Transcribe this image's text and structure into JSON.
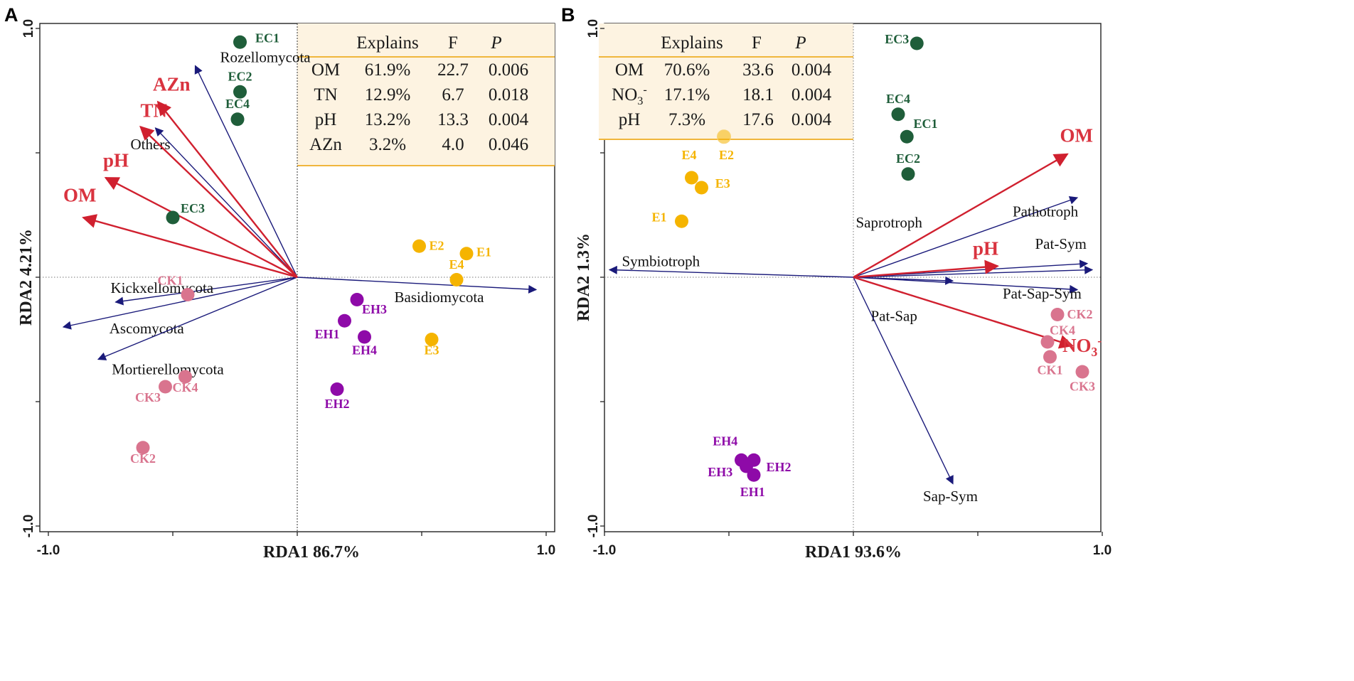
{
  "colors": {
    "env_arrow": "#d0202f",
    "taxon_arrow": "#1a1a7a",
    "EC": "#1f5e3a",
    "E": "#f5b400",
    "EH": "#8e0aa8",
    "CK": "#d9748e",
    "table_bg": "#fdf3e1",
    "table_line": "#f0b63c",
    "env_label": "#d9333f"
  },
  "chart_data": [
    {
      "panel": "A",
      "type": "scatter",
      "xlabel": "RDA1 86.7%",
      "ylabel": "RDA2 4.21%",
      "xlim": [
        -1.0,
        1.0
      ],
      "ylim": [
        -1.0,
        1.0
      ],
      "xticks": [
        {
          "value": -1.0,
          "label": "-1.0"
        },
        {
          "value": 1.0,
          "label": "1.0"
        }
      ],
      "yticks": [
        {
          "value": 1.0,
          "label": "1.0"
        },
        {
          "value": -1.0,
          "label": "-1.0"
        }
      ],
      "table": {
        "headers": [
          "Explains",
          "F",
          "P"
        ],
        "rows": [
          {
            "var": "OM",
            "explains": "61.9%",
            "F": "22.7",
            "P": "0.006"
          },
          {
            "var": "TN",
            "explains": "12.9%",
            "F": "6.7",
            "P": "0.018"
          },
          {
            "var": "pH",
            "explains": "13.2%",
            "F": "13.3",
            "P": "0.004"
          },
          {
            "var": "AZn",
            "explains": "3.2%",
            "F": "4.0",
            "P": "0.046"
          }
        ]
      },
      "env_arrows": [
        {
          "name": "OM",
          "x": -0.86,
          "y": 0.24,
          "lx": -0.94,
          "ly": 0.305
        },
        {
          "name": "pH",
          "x": -0.77,
          "y": 0.4,
          "lx": -0.78,
          "ly": 0.445
        },
        {
          "name": "TN",
          "x": -0.63,
          "y": 0.605,
          "lx": -0.63,
          "ly": 0.645
        },
        {
          "name": "AZn",
          "x": -0.56,
          "y": 0.705,
          "lx": -0.58,
          "ly": 0.75
        }
      ],
      "taxa_arrows": [
        {
          "name": "Rozellomycota",
          "x": -0.41,
          "y": 0.85,
          "lx": -0.31,
          "ly": 0.865
        },
        {
          "name": "Others",
          "x": -0.57,
          "y": 0.6,
          "lx": -0.67,
          "ly": 0.515
        },
        {
          "name": "Kickxellomycota",
          "x": -0.73,
          "y": -0.1,
          "lx": -0.75,
          "ly": -0.063
        },
        {
          "name": "Ascomycota",
          "x": -0.94,
          "y": -0.2,
          "lx": -0.755,
          "ly": -0.225
        },
        {
          "name": "Mortierellomycota",
          "x": -0.8,
          "y": -0.33,
          "lx": -0.745,
          "ly": -0.39
        },
        {
          "name": "Basidiomycota",
          "x": 0.96,
          "y": -0.05,
          "lx": 0.39,
          "ly": -0.1
        }
      ],
      "points": [
        {
          "label": "EC1",
          "group": "EC",
          "x": -0.23,
          "y": 0.945,
          "lx": -0.12,
          "ly": 0.945
        },
        {
          "label": "EC2",
          "group": "EC",
          "x": -0.23,
          "y": 0.745,
          "lx": -0.23,
          "ly": 0.79
        },
        {
          "label": "EC4",
          "group": "EC",
          "x": -0.24,
          "y": 0.635,
          "lx": -0.24,
          "ly": 0.68
        },
        {
          "label": "EC3",
          "group": "EC",
          "x": -0.5,
          "y": 0.24,
          "lx": -0.42,
          "ly": 0.26
        },
        {
          "label": "E2",
          "group": "E",
          "x": 0.49,
          "y": 0.125,
          "lx": 0.56,
          "ly": 0.11
        },
        {
          "label": "E1",
          "group": "E",
          "x": 0.68,
          "y": 0.095,
          "lx": 0.75,
          "ly": 0.085
        },
        {
          "label": "E4",
          "group": "E",
          "x": 0.64,
          "y": -0.01,
          "lx": 0.64,
          "ly": 0.035
        },
        {
          "label": "E3",
          "group": "E",
          "x": 0.54,
          "y": -0.25,
          "lx": 0.54,
          "ly": -0.31
        },
        {
          "label": "EH3",
          "group": "EH",
          "x": 0.24,
          "y": -0.09,
          "lx": 0.31,
          "ly": -0.145
        },
        {
          "label": "EH1",
          "group": "EH",
          "x": 0.19,
          "y": -0.175,
          "lx": 0.12,
          "ly": -0.245
        },
        {
          "label": "EH4",
          "group": "EH",
          "x": 0.27,
          "y": -0.24,
          "lx": 0.27,
          "ly": -0.31
        },
        {
          "label": "EH2",
          "group": "EH",
          "x": 0.16,
          "y": -0.45,
          "lx": 0.16,
          "ly": -0.525
        },
        {
          "label": "CK1",
          "group": "CK",
          "x": -0.44,
          "y": -0.07,
          "lx": -0.51,
          "ly": -0.03
        },
        {
          "label": "CK4",
          "group": "CK",
          "x": -0.45,
          "y": -0.4,
          "lx": -0.45,
          "ly": -0.46
        },
        {
          "label": "CK3",
          "group": "CK",
          "x": -0.53,
          "y": -0.44,
          "lx": -0.6,
          "ly": -0.5
        },
        {
          "label": "CK2",
          "group": "CK",
          "x": -0.62,
          "y": -0.685,
          "lx": -0.62,
          "ly": -0.745
        }
      ]
    },
    {
      "panel": "B",
      "type": "scatter",
      "xlabel": "RDA1  93.6%",
      "ylabel": "RDA2 1.3%",
      "xlim": [
        -1.0,
        1.0
      ],
      "ylim": [
        -1.0,
        1.0
      ],
      "xticks": [
        {
          "value": -1.0,
          "label": "-1.0"
        },
        {
          "value": 1.0,
          "label": "1.0"
        }
      ],
      "yticks": [
        {
          "value": 1.0,
          "label": "1.0"
        },
        {
          "value": -1.0,
          "label": "-1.0"
        }
      ],
      "table": {
        "headers": [
          "Explains",
          "F",
          "P"
        ],
        "rows": [
          {
            "var": "OM",
            "var_sub": "",
            "var_sup": "",
            "explains": "70.6%",
            "F": "33.6",
            "P": "0.004"
          },
          {
            "var": "NO",
            "var_sub": "3",
            "var_sup": "-",
            "explains": "17.1%",
            "F": "18.1",
            "P": "0.004"
          },
          {
            "var": "pH",
            "var_sub": "",
            "var_sup": "",
            "explains": "7.3%",
            "F": "17.6",
            "P": "0.004"
          }
        ]
      },
      "env_arrows": [
        {
          "name": "OM",
          "sub": "",
          "sup": "",
          "x": 0.86,
          "y": 0.495,
          "lx": 0.83,
          "ly": 0.545
        },
        {
          "name": "pH",
          "sub": "",
          "sup": "",
          "x": 0.58,
          "y": 0.045,
          "lx": 0.48,
          "ly": 0.09
        },
        {
          "name": "NO",
          "sub": "3",
          "sup": "-",
          "x": 0.88,
          "y": -0.275,
          "lx": 0.84,
          "ly": -0.3
        }
      ],
      "taxa_arrows": [
        {
          "name": "Symbiotroph",
          "x": -0.98,
          "y": 0.03,
          "lx": -0.93,
          "ly": 0.045
        },
        {
          "name": "Saprotroph",
          "x": 0.96,
          "y": 0.03,
          "lx": 0.01,
          "ly": 0.2
        },
        {
          "name": "Pathotroph",
          "x": 0.9,
          "y": 0.32,
          "lx": 0.64,
          "ly": 0.245
        },
        {
          "name": "Pat-Sym",
          "x": 0.94,
          "y": 0.055,
          "lx": 0.73,
          "ly": 0.115
        },
        {
          "name": "Pat-Sap-Sym",
          "x": 0.9,
          "y": -0.05,
          "lx": 0.6,
          "ly": -0.085
        },
        {
          "name": "Pat-Sap",
          "x": 0.4,
          "y": -0.015,
          "lx": 0.07,
          "ly": -0.175
        },
        {
          "name": "Sap-Sym",
          "x": 0.4,
          "y": -0.83,
          "lx": 0.28,
          "ly": -0.9
        }
      ],
      "points": [
        {
          "label": "EC3",
          "group": "EC",
          "x": 0.255,
          "y": 0.94,
          "lx": 0.175,
          "ly": 0.94
        },
        {
          "label": "EC4",
          "group": "EC",
          "x": 0.18,
          "y": 0.655,
          "lx": 0.18,
          "ly": 0.7
        },
        {
          "label": "EC1",
          "group": "EC",
          "x": 0.215,
          "y": 0.565,
          "lx": 0.29,
          "ly": 0.6
        },
        {
          "label": "EC2",
          "group": "EC",
          "x": 0.22,
          "y": 0.415,
          "lx": 0.22,
          "ly": 0.46
        },
        {
          "label": "E2",
          "group": "E",
          "x": -0.52,
          "y": 0.565,
          "lx": -0.51,
          "ly": 0.475
        },
        {
          "label": "E4",
          "group": "E",
          "x": -0.65,
          "y": 0.4,
          "lx": -0.66,
          "ly": 0.475
        },
        {
          "label": "E3",
          "group": "E",
          "x": -0.61,
          "y": 0.36,
          "lx": -0.525,
          "ly": 0.36
        },
        {
          "label": "E1",
          "group": "E",
          "x": -0.69,
          "y": 0.225,
          "lx": -0.78,
          "ly": 0.225
        },
        {
          "label": "EH4",
          "group": "EH",
          "x": -0.45,
          "y": -0.735,
          "lx": -0.515,
          "ly": -0.675
        },
        {
          "label": "EH2",
          "group": "EH",
          "x": -0.4,
          "y": -0.735,
          "lx": -0.3,
          "ly": -0.78
        },
        {
          "label": "EH3",
          "group": "EH",
          "x": -0.43,
          "y": -0.76,
          "lx": -0.535,
          "ly": -0.8
        },
        {
          "label": "EH1",
          "group": "EH",
          "x": -0.4,
          "y": -0.795,
          "lx": -0.405,
          "ly": -0.88
        },
        {
          "label": "CK2",
          "group": "CK",
          "x": 0.82,
          "y": -0.15,
          "lx": 0.91,
          "ly": -0.165
        },
        {
          "label": "CK4",
          "group": "CK",
          "x": 0.78,
          "y": -0.26,
          "lx": 0.84,
          "ly": -0.23
        },
        {
          "label": "CK1",
          "group": "CK",
          "x": 0.79,
          "y": -0.32,
          "lx": 0.79,
          "ly": -0.39
        },
        {
          "label": "CK3",
          "group": "CK",
          "x": 0.92,
          "y": -0.38,
          "lx": 0.92,
          "ly": -0.455
        }
      ]
    }
  ]
}
